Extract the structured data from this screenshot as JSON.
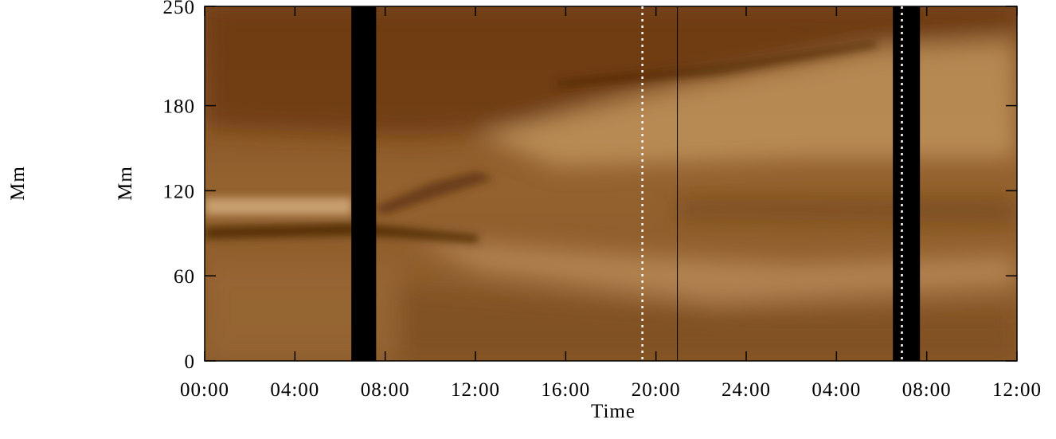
{
  "chart_data": {
    "type": "time-distance",
    "xlabel": "Time",
    "ylabel": "Mm",
    "annotations": [
      "Mm"
    ],
    "xlim": [
      0,
      36
    ],
    "ylim": [
      0,
      250
    ],
    "xticks": [
      {
        "value": 0,
        "label": "00:00"
      },
      {
        "value": 4,
        "label": "04:00"
      },
      {
        "value": 8,
        "label": "08:00"
      },
      {
        "value": 12,
        "label": "12:00"
      },
      {
        "value": 16,
        "label": "16:00"
      },
      {
        "value": 20,
        "label": "20:00"
      },
      {
        "value": 24,
        "label": "24:00"
      },
      {
        "value": 28,
        "label": "04:00"
      },
      {
        "value": 32,
        "label": "08:00"
      },
      {
        "value": 36,
        "label": "12:00"
      }
    ],
    "yticks": [
      0,
      60,
      120,
      180,
      250
    ],
    "data_gaps": [
      [
        6.5,
        7.6
      ],
      [
        30.5,
        31.7
      ]
    ],
    "gap_color": "#000000",
    "dotted_lines": [
      19.4,
      30.9
    ],
    "dotted_color": "#ffffff",
    "solid_lines": [
      20.95
    ],
    "solid_color": "#000000"
  }
}
